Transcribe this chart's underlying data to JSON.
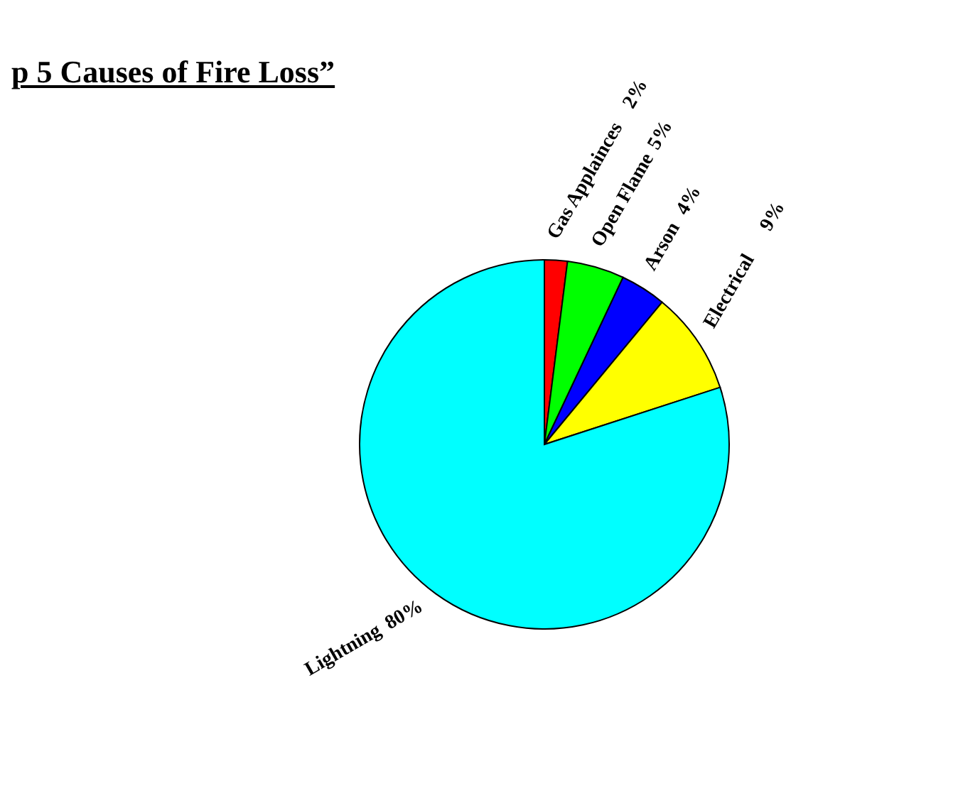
{
  "chart_data": {
    "type": "pie",
    "title": "p 5 Causes of Fire Loss”",
    "categories": [
      "Gas Applainces",
      "Open Flame",
      "Arson",
      "Electrical",
      "Lightning"
    ],
    "values": [
      2,
      5,
      4,
      9,
      80
    ],
    "colors": [
      "#ff0000",
      "#00ff00",
      "#0000ff",
      "#ffff00",
      "#00ffff"
    ],
    "value_labels": [
      "2%",
      "5%",
      "4%",
      "9%",
      "80%"
    ],
    "legend": false
  }
}
